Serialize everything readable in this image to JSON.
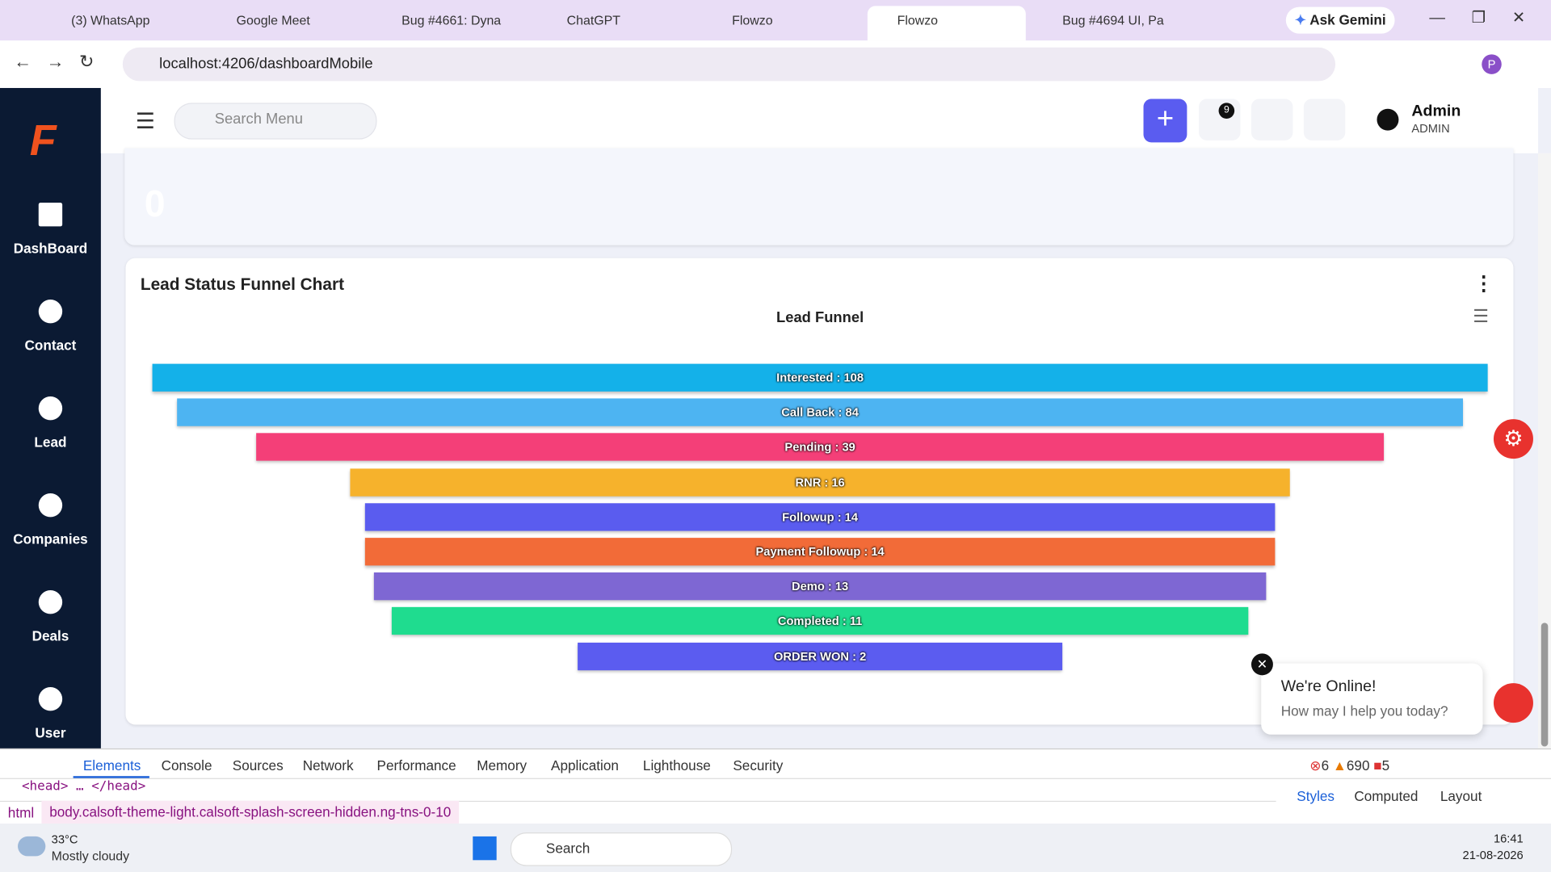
{
  "browser": {
    "tabs": [
      "(3) WhatsApp",
      "Google Meet",
      "Bug #4661: Dyna",
      "ChatGPT",
      "Flowzo",
      "Flowzo",
      "Bug #4694 UI, Pa"
    ],
    "gemini": "Ask Gemini",
    "url": "localhost:4206/dashboardMobile",
    "profile": "P"
  },
  "sidebar": [
    "DashBoard",
    "Contact",
    "Lead",
    "Companies",
    "Deals",
    "User"
  ],
  "header": {
    "search": "Search Menu",
    "notifications": "9",
    "user_name": "Admin",
    "user_role": "ADMIN"
  },
  "top_card": {
    "value": "0"
  },
  "chart_card": {
    "title": "Lead Status Funnel Chart"
  },
  "chart_data": {
    "type": "funnel",
    "title": "Lead Funnel",
    "categories": [
      "Interested",
      "Call Back",
      "Pending",
      "RNR",
      "Followup",
      "Payment Followup",
      "Demo",
      "Completed",
      "ORDER WON"
    ],
    "values": [
      108,
      84,
      39,
      16,
      14,
      14,
      13,
      11,
      2
    ],
    "value_labels": [
      "Interested : 108",
      "Call Back : 84",
      "Pending : 39",
      "RNR : 16",
      "Followup : 14",
      "Payment Followup : 14",
      "Demo : 13",
      "Completed : 11",
      "ORDER WON : 2"
    ],
    "colors": [
      "#14b1e9",
      "#4db4f2",
      "#f43f78",
      "#f6b22c",
      "#5a5cef",
      "#f26b38",
      "#7e67d3",
      "#1fdc8f",
      "#5b5cf0"
    ]
  },
  "chat": {
    "title": "We're Online!",
    "subtitle": "How may I help you today?"
  },
  "devtools": {
    "tabs": [
      "Elements",
      "Console",
      "Sources",
      "Network",
      "Performance",
      "Memory",
      "Application",
      "Lighthouse",
      "Security"
    ],
    "errors": "6",
    "warnings": "690",
    "issues": "5",
    "dom": "<head> … </head>",
    "crumbs": [
      "html",
      "body.calsoft-theme-light.calsoft-splash-screen-hidden.ng-tns-0-10"
    ],
    "panes": [
      "Styles",
      "Computed",
      "Layout"
    ]
  },
  "taskbar": {
    "temp": "33°C",
    "weather": "Mostly cloudy",
    "search": "Search",
    "time": "16:41",
    "date": "21-08-2026"
  }
}
